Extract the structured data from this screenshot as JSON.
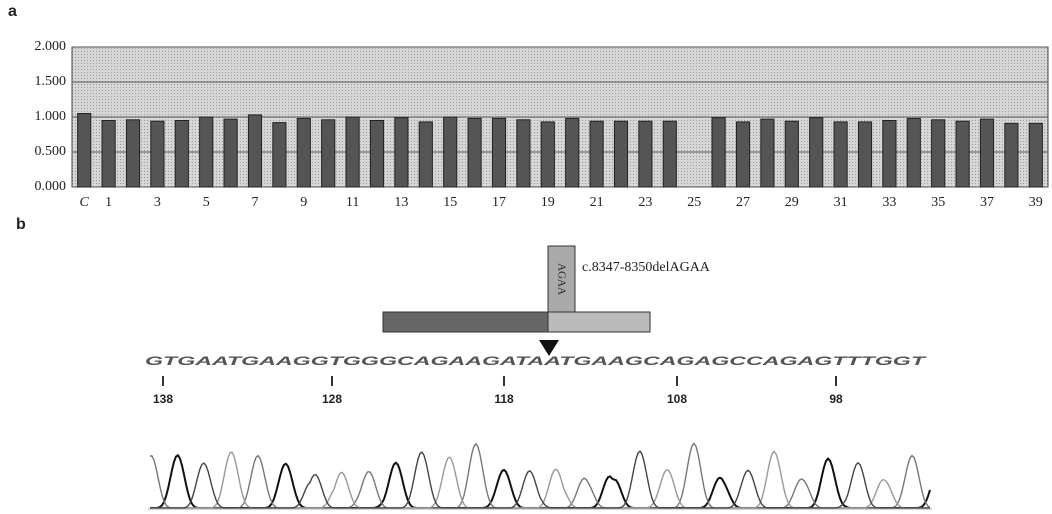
{
  "chart_data": {
    "type": "bar",
    "panel_label": "a",
    "categories": [
      "C",
      "1",
      null,
      "3",
      null,
      "5",
      null,
      "7",
      null,
      "9",
      null,
      "11",
      null,
      "13",
      null,
      "15",
      null,
      "17",
      null,
      "19",
      null,
      "21",
      null,
      "23",
      null,
      "25",
      null,
      "27",
      null,
      "29",
      null,
      "31",
      null,
      "33",
      null,
      "35",
      null,
      "37",
      null,
      "39"
    ],
    "values": [
      1.05,
      0.95,
      0.96,
      0.94,
      0.95,
      1.0,
      0.97,
      1.03,
      0.92,
      0.98,
      0.96,
      1.0,
      0.95,
      0.99,
      0.93,
      1.0,
      0.98,
      0.98,
      0.96,
      0.93,
      0.98,
      0.94,
      0.94,
      0.94,
      0.94,
      null,
      0.99,
      0.93,
      0.97,
      0.94,
      0.99,
      0.93,
      0.93,
      0.95,
      0.98,
      0.96,
      0.94,
      0.97,
      0.91,
      0.91
    ],
    "color": "#555555",
    "ylim": [
      0,
      2
    ],
    "yticks": [
      {
        "value": 0,
        "label": "0.000"
      },
      {
        "value": 0.5,
        "label": "0.500"
      },
      {
        "value": 1,
        "label": "1.000"
      },
      {
        "value": 1.5,
        "label": "1.500"
      },
      {
        "value": 2,
        "label": "2.000"
      }
    ],
    "grid": true
  },
  "panel_b": {
    "panel_label": "b",
    "mutation": "c.8347-8350delAGAA",
    "deleted": "AGAA",
    "sequence": "GTGAATGAAGGTGGGCAGAAGATAATGAAGCAGAGCCAGAGTTTGGT",
    "positions": [
      "138",
      "128",
      "118",
      "108",
      "98"
    ]
  }
}
